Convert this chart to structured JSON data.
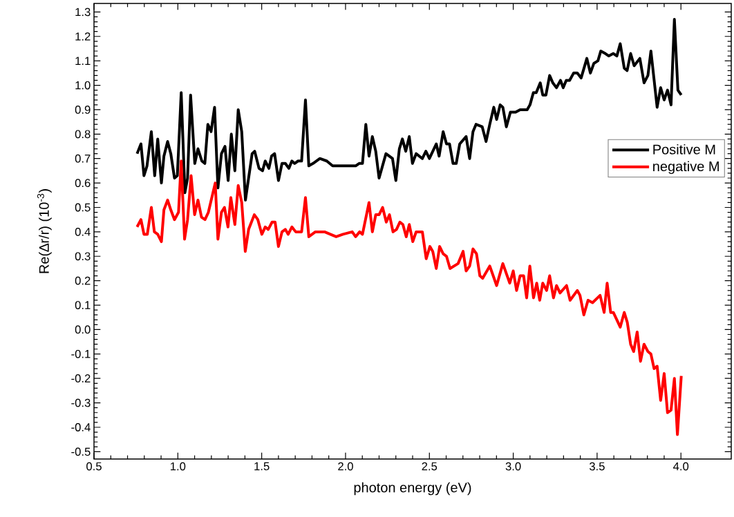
{
  "chart_data": {
    "type": "line",
    "xlabel": "photon energy (eV)",
    "ylabel": "Re(∆r/r) (10$^{-3}$)",
    "xlim": [
      0.5,
      4.3
    ],
    "ylim": [
      -0.53,
      1.335
    ],
    "xticks": [
      0.5,
      {
        "value": 1.0,
        "label": "1.0"
      },
      1.5,
      {
        "value": 2.0,
        "label": "2.0"
      },
      2.5,
      {
        "value": 3.0,
        "label": "3.0"
      },
      3.5,
      {
        "value": 4.0,
        "label": "4.0"
      }
    ],
    "yticks": [
      -0.5,
      -0.4,
      -0.3,
      -0.2,
      -0.1,
      {
        "value": 0.0,
        "label": "0.0"
      },
      0.1,
      0.2,
      0.3,
      0.4,
      0.5,
      0.6,
      0.7,
      0.8,
      0.9,
      {
        "value": 1.0,
        "label": "1.0"
      },
      1.1,
      1.2,
      1.3
    ],
    "legend": "right",
    "line_style": "solid",
    "series": [
      {
        "name": "Positive M",
        "color": "#000000",
        "x": [
          0.757,
          0.78,
          0.798,
          0.816,
          0.842,
          0.862,
          0.88,
          0.902,
          0.917,
          0.939,
          0.958,
          0.98,
          0.997,
          1.02,
          1.042,
          1.058,
          1.076,
          1.101,
          1.12,
          1.143,
          1.161,
          1.179,
          1.198,
          1.219,
          1.239,
          1.26,
          1.281,
          1.3,
          1.319,
          1.34,
          1.36,
          1.381,
          1.403,
          1.422,
          1.443,
          1.458,
          1.484,
          1.505,
          1.521,
          1.543,
          1.559,
          1.577,
          1.6,
          1.621,
          1.641,
          1.662,
          1.68,
          1.696,
          1.717,
          1.738,
          1.761,
          1.781,
          1.806,
          1.847,
          1.888,
          1.923,
          1.985,
          2.04,
          2.06,
          2.081,
          2.101,
          2.121,
          2.14,
          2.16,
          2.18,
          2.2,
          2.241,
          2.28,
          2.3,
          2.321,
          2.339,
          2.359,
          2.38,
          2.399,
          2.421,
          2.458,
          2.479,
          2.5,
          2.541,
          2.558,
          2.582,
          2.602,
          2.62,
          2.641,
          2.66,
          2.681,
          2.719,
          2.74,
          2.76,
          2.778,
          2.815,
          2.838,
          2.86,
          2.884,
          2.901,
          2.922,
          2.938,
          2.959,
          2.983,
          3.014,
          3.041,
          3.083,
          3.1,
          3.12,
          3.137,
          3.161,
          3.176,
          3.195,
          3.217,
          3.236,
          3.258,
          3.282,
          3.298,
          3.316,
          3.336,
          3.36,
          3.382,
          3.405,
          3.439,
          3.46,
          3.481,
          3.505,
          3.522,
          3.549,
          3.57,
          3.597,
          3.618,
          3.638,
          3.662,
          3.679,
          3.7,
          3.721,
          3.755,
          3.78,
          3.803,
          3.821,
          3.858,
          3.879,
          3.9,
          3.92,
          3.941,
          3.961,
          3.982,
          4.002
        ],
        "values": [
          0.72,
          0.76,
          0.63,
          0.67,
          0.81,
          0.63,
          0.78,
          0.6,
          0.71,
          0.77,
          0.72,
          0.62,
          0.63,
          0.97,
          0.56,
          0.62,
          0.96,
          0.68,
          0.74,
          0.69,
          0.68,
          0.84,
          0.81,
          0.91,
          0.58,
          0.72,
          0.75,
          0.61,
          0.8,
          0.65,
          0.9,
          0.81,
          0.53,
          0.62,
          0.72,
          0.73,
          0.66,
          0.65,
          0.69,
          0.66,
          0.71,
          0.72,
          0.61,
          0.68,
          0.68,
          0.66,
          0.69,
          0.68,
          0.69,
          0.69,
          0.94,
          0.67,
          0.68,
          0.7,
          0.69,
          0.67,
          0.67,
          0.67,
          0.67,
          0.68,
          0.68,
          0.84,
          0.71,
          0.79,
          0.73,
          0.62,
          0.72,
          0.7,
          0.61,
          0.74,
          0.78,
          0.73,
          0.79,
          0.68,
          0.72,
          0.7,
          0.73,
          0.7,
          0.76,
          0.71,
          0.81,
          0.76,
          0.76,
          0.68,
          0.68,
          0.76,
          0.79,
          0.7,
          0.81,
          0.84,
          0.83,
          0.77,
          0.84,
          0.91,
          0.86,
          0.92,
          0.91,
          0.83,
          0.89,
          0.89,
          0.9,
          0.9,
          0.92,
          0.97,
          0.97,
          1.01,
          0.96,
          0.96,
          1.04,
          1.01,
          0.99,
          1.02,
          0.99,
          1.02,
          1.02,
          1.05,
          1.05,
          1.03,
          1.11,
          1.05,
          1.09,
          1.1,
          1.14,
          1.13,
          1.12,
          1.13,
          1.12,
          1.17,
          1.07,
          1.06,
          1.13,
          1.08,
          1.11,
          1.01,
          1.04,
          1.14,
          0.91,
          0.99,
          0.94,
          0.98,
          0.92,
          1.27,
          0.98,
          0.96
        ]
      },
      {
        "name": "negative M",
        "color": "#ff0000",
        "x": [
          0.757,
          0.78,
          0.798,
          0.818,
          0.842,
          0.86,
          0.88,
          0.902,
          0.917,
          0.939,
          0.958,
          0.98,
          1.004,
          1.02,
          1.04,
          1.058,
          1.079,
          1.1,
          1.12,
          1.141,
          1.162,
          1.182,
          1.223,
          1.239,
          1.26,
          1.278,
          1.299,
          1.316,
          1.34,
          1.36,
          1.381,
          1.402,
          1.422,
          1.456,
          1.477,
          1.501,
          1.521,
          1.539,
          1.562,
          1.58,
          1.6,
          1.621,
          1.641,
          1.658,
          1.68,
          1.703,
          1.738,
          1.761,
          1.781,
          1.82,
          1.875,
          1.909,
          1.944,
          1.985,
          2.04,
          2.06,
          2.084,
          2.101,
          2.14,
          2.16,
          2.18,
          2.2,
          2.221,
          2.243,
          2.262,
          2.283,
          2.304,
          2.324,
          2.342,
          2.362,
          2.38,
          2.401,
          2.421,
          2.458,
          2.481,
          2.503,
          2.52,
          2.541,
          2.561,
          2.582,
          2.602,
          2.623,
          2.671,
          2.701,
          2.719,
          2.74,
          2.76,
          2.781,
          2.801,
          2.818,
          2.86,
          2.901,
          2.938,
          2.979,
          3.0,
          3.02,
          3.041,
          3.062,
          3.08,
          3.099,
          3.121,
          3.14,
          3.158,
          3.176,
          3.199,
          3.217,
          3.24,
          3.258,
          3.279,
          3.318,
          3.339,
          3.382,
          3.398,
          3.421,
          3.446,
          3.473,
          3.518,
          3.542,
          3.56,
          3.581,
          3.597,
          3.638,
          3.662,
          3.68,
          3.7,
          3.718,
          3.739,
          3.759,
          3.78,
          3.803,
          3.821,
          3.84,
          3.858,
          3.879,
          3.9,
          3.92,
          3.941,
          3.961,
          3.979,
          4.002
        ],
        "values": [
          0.42,
          0.45,
          0.39,
          0.39,
          0.5,
          0.4,
          0.39,
          0.36,
          0.49,
          0.53,
          0.49,
          0.45,
          0.48,
          0.69,
          0.37,
          0.45,
          0.63,
          0.47,
          0.53,
          0.46,
          0.45,
          0.48,
          0.6,
          0.37,
          0.48,
          0.5,
          0.42,
          0.54,
          0.43,
          0.59,
          0.52,
          0.32,
          0.41,
          0.47,
          0.45,
          0.39,
          0.42,
          0.41,
          0.44,
          0.44,
          0.34,
          0.4,
          0.41,
          0.39,
          0.42,
          0.4,
          0.4,
          0.54,
          0.38,
          0.4,
          0.4,
          0.39,
          0.38,
          0.39,
          0.4,
          0.38,
          0.4,
          0.39,
          0.52,
          0.4,
          0.47,
          0.47,
          0.5,
          0.44,
          0.47,
          0.4,
          0.41,
          0.44,
          0.43,
          0.38,
          0.43,
          0.36,
          0.4,
          0.4,
          0.29,
          0.34,
          0.32,
          0.25,
          0.34,
          0.31,
          0.3,
          0.25,
          0.27,
          0.32,
          0.24,
          0.26,
          0.33,
          0.31,
          0.22,
          0.21,
          0.26,
          0.18,
          0.27,
          0.19,
          0.24,
          0.16,
          0.22,
          0.22,
          0.13,
          0.26,
          0.13,
          0.19,
          0.12,
          0.19,
          0.16,
          0.22,
          0.13,
          0.18,
          0.15,
          0.18,
          0.12,
          0.16,
          0.14,
          0.06,
          0.12,
          0.11,
          0.14,
          0.07,
          0.19,
          0.07,
          0.07,
          0.01,
          0.07,
          0.03,
          -0.06,
          -0.09,
          -0.01,
          -0.13,
          -0.06,
          -0.09,
          -0.1,
          -0.16,
          -0.15,
          -0.29,
          -0.18,
          -0.34,
          -0.33,
          -0.2,
          -0.43,
          -0.19
        ]
      }
    ]
  }
}
